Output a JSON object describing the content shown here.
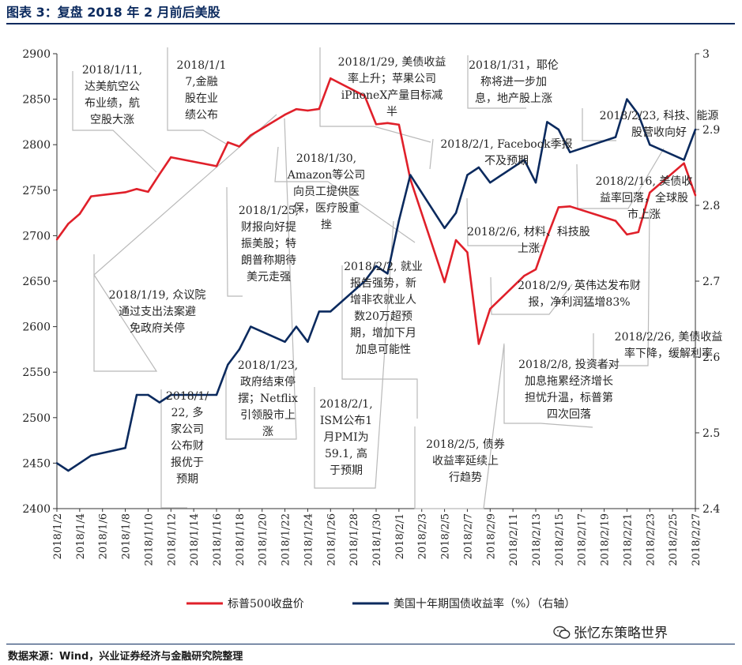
{
  "figure": {
    "title": "图表 3：复盘 2018 年 2 月前后美股",
    "source": "数据来源：Wind，兴业证券经济与金融研究院整理",
    "watermark": "张忆东策略世界",
    "watermark_icon": "wechat-icon"
  },
  "chart_data": {
    "type": "line",
    "title": "",
    "x": [
      "2018/1/2",
      "2018/1/3",
      "2018/1/4",
      "2018/1/5",
      "2018/1/8",
      "2018/1/9",
      "2018/1/10",
      "2018/1/11",
      "2018/1/12",
      "2018/1/16",
      "2018/1/17",
      "2018/1/18",
      "2018/1/19",
      "2018/1/22",
      "2018/1/23",
      "2018/1/24",
      "2018/1/25",
      "2018/1/26",
      "2018/1/29",
      "2018/1/30",
      "2018/1/31",
      "2018/2/1",
      "2018/2/2",
      "2018/2/5",
      "2018/2/6",
      "2018/2/7",
      "2018/2/8",
      "2018/2/9",
      "2018/2/12",
      "2018/2/13",
      "2018/2/14",
      "2018/2/15",
      "2018/2/16",
      "2018/2/20",
      "2018/2/21",
      "2018/2/22",
      "2018/2/23",
      "2018/2/26",
      "2018/2/27"
    ],
    "x_ticks": [
      "2018/1/2",
      "2018/1/4",
      "2018/1/6",
      "2018/1/8",
      "2018/1/10",
      "2018/1/12",
      "2018/1/14",
      "2018/1/16",
      "2018/1/18",
      "2018/1/20",
      "2018/1/22",
      "2018/1/24",
      "2018/1/26",
      "2018/1/28",
      "2018/1/30",
      "2018/2/1",
      "2018/2/3",
      "2018/2/5",
      "2018/2/7",
      "2018/2/9",
      "2018/2/11",
      "2018/2/13",
      "2018/2/15",
      "2018/2/17",
      "2018/2/19",
      "2018/2/21",
      "2018/2/23",
      "2018/2/25",
      "2018/2/27"
    ],
    "y_left": {
      "min": 2400,
      "max": 2900,
      "ticks": [
        2400,
        2450,
        2500,
        2550,
        2600,
        2650,
        2700,
        2750,
        2800,
        2850,
        2900
      ]
    },
    "y_right": {
      "min": 2.4,
      "max": 3.0,
      "ticks": [
        "2.4",
        "2.5",
        "2.6",
        "2.7",
        "2.8",
        "2.9",
        "3"
      ]
    },
    "series": [
      {
        "name": "标普500收盘价",
        "axis": "left",
        "color": "#e0202a",
        "values": [
          2695.8,
          2713.1,
          2723.9,
          2743.2,
          2747.7,
          2751.3,
          2748.2,
          2767.6,
          2786.2,
          2776.4,
          2802.6,
          2798.0,
          2810.3,
          2832.97,
          2839.1,
          2837.5,
          2839.3,
          2872.9,
          2853.5,
          2822.4,
          2823.8,
          2821.98,
          2762.1,
          2648.9,
          2695.1,
          2681.7,
          2581.0,
          2619.6,
          2656.0,
          2662.9,
          2698.6,
          2731.2,
          2732.2,
          2716.3,
          2701.3,
          2703.96,
          2747.3,
          2779.6,
          2744.3
        ]
      },
      {
        "name": "美国十年期国债收益率（%）（右轴）",
        "axis": "right",
        "color": "#0b2a5e",
        "values": [
          2.46,
          2.45,
          2.46,
          2.47,
          2.48,
          2.55,
          2.55,
          2.54,
          2.55,
          2.55,
          2.59,
          2.61,
          2.64,
          2.62,
          2.64,
          2.62,
          2.66,
          2.66,
          2.7,
          2.72,
          2.71,
          2.78,
          2.84,
          2.77,
          2.79,
          2.84,
          2.85,
          2.83,
          2.86,
          2.83,
          2.91,
          2.9,
          2.87,
          2.89,
          2.94,
          2.92,
          2.88,
          2.86,
          2.9
        ]
      }
    ],
    "annotations": [
      {
        "id": "a-0111",
        "lines": [
          "2018/1/11,",
          "达美航空公",
          "布业绩，航",
          "空股大涨"
        ]
      },
      {
        "id": "a-0117",
        "lines": [
          "2018/1/1",
          "7,金融",
          "股在业",
          "绩公布"
        ]
      },
      {
        "id": "a-0129",
        "lines": [
          "2018/1/29, 美债收益",
          "率上升；苹果公司",
          "iPhoneX产量目标减",
          "半"
        ]
      },
      {
        "id": "a-0131",
        "lines": [
          "2018/1/31，耶伦",
          "称将进一步加",
          "息，地产股上涨"
        ]
      },
      {
        "id": "a-0223",
        "lines": [
          "2018/2/23, 科技、能源",
          "股营收向好"
        ]
      },
      {
        "id": "a-0201fb",
        "lines": [
          "2018/2/1, Facebook季报",
          "不及预期"
        ]
      },
      {
        "id": "a-0130",
        "lines": [
          "2018/1/30,",
          "Amazon等公司",
          "向员工提供医",
          "保，医疗股重",
          "挫"
        ]
      },
      {
        "id": "a-0216",
        "lines": [
          "2018/2/16, 美债收",
          "益率回落，全球股",
          "市上涨"
        ]
      },
      {
        "id": "a-0125",
        "lines": [
          "2018/1/25,",
          "财报向好提",
          "振美股；特",
          "朗普称期待",
          "美元走强"
        ]
      },
      {
        "id": "a-0206",
        "lines": [
          "2018/2/6, 材料、科技股",
          "上涨"
        ]
      },
      {
        "id": "a-0119",
        "lines": [
          "2018/1/19, 众议院",
          "通过支出法案避",
          "免政府关停"
        ]
      },
      {
        "id": "a-0202",
        "lines": [
          "2018/2/2, 就业",
          "报告强势，新",
          "增非农就业人",
          "数20万超预",
          "期，增加下月",
          "加息可能性"
        ]
      },
      {
        "id": "a-0209",
        "lines": [
          "2018/2/9, 英伟达发布财",
          "报，净利润猛增83%"
        ]
      },
      {
        "id": "a-0226",
        "lines": [
          "2018/2/26, 美债收益",
          "率下降，缓解利率"
        ]
      },
      {
        "id": "a-0208",
        "lines": [
          "2018/2/8, 投资者对",
          "加息拖累经济增长",
          "担忧升温，标普第",
          "四次回落"
        ]
      },
      {
        "id": "a-0123",
        "lines": [
          "2018/1/23,",
          "政府结束停",
          "摆；Netflix",
          "引领股市上",
          "涨"
        ]
      },
      {
        "id": "a-0122",
        "lines": [
          "2018/1/",
          "22, 多",
          "家公司",
          "公布财",
          "报优于",
          "预期"
        ]
      },
      {
        "id": "a-0201ism",
        "lines": [
          "2018/2/1,",
          "ISM公布1",
          "月PMI为",
          "59.1, 高",
          "于预期"
        ]
      },
      {
        "id": "a-0205",
        "lines": [
          "2018/2/5, 债券",
          "收益率延续上",
          "行趋势"
        ]
      }
    ],
    "legend_position": "bottom",
    "grid": false
  }
}
